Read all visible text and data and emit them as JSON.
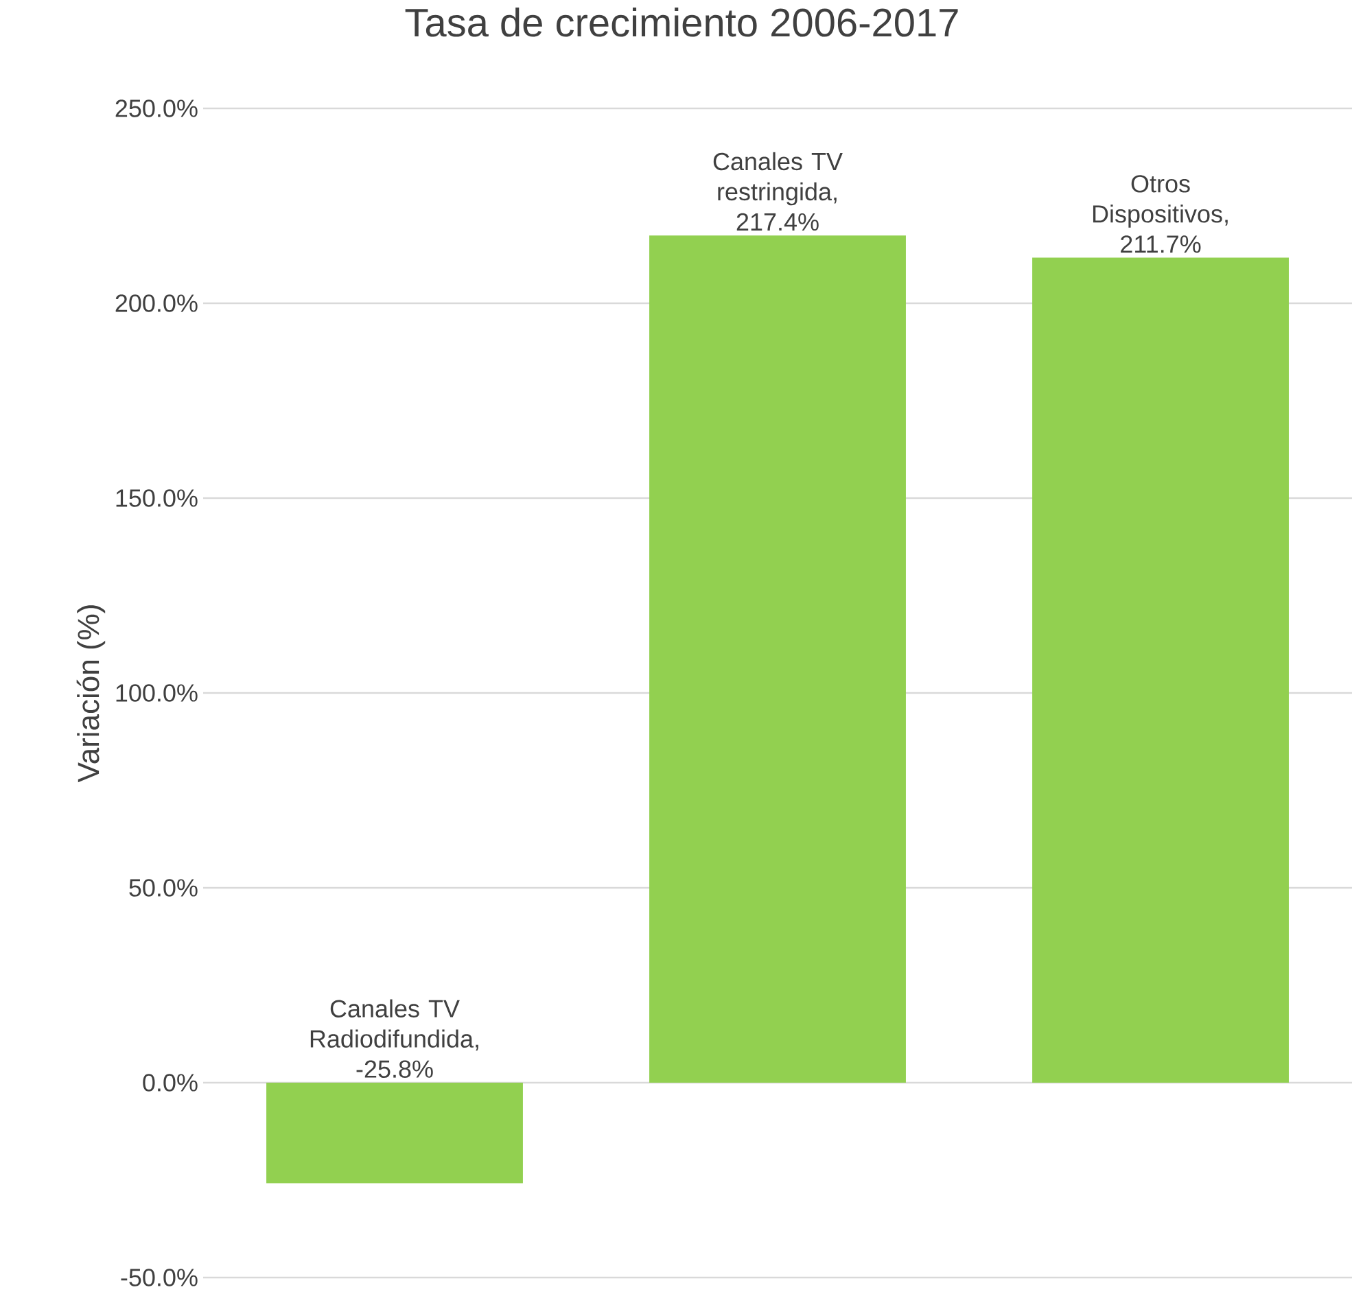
{
  "chart_data": {
    "type": "bar",
    "title": "Tasa de crecimiento 2006-2017",
    "ylabel": "Variación (%)",
    "categories": [
      null,
      null,
      null
    ],
    "values": [
      -25.8,
      217.4,
      211.7
    ],
    "value_labels": [
      "Canales TV Radiodifundida, -25.8%",
      "Canales TV restringida, 217.4%",
      "Otros Dispositivos, 211.7%"
    ],
    "color": "#92d050",
    "ylim": [
      -50,
      250
    ],
    "yticks": [
      {
        "value": -50,
        "label": "-50.0%"
      },
      {
        "value": 0,
        "label": "0.0%"
      },
      {
        "value": 50,
        "label": "50.0%"
      },
      {
        "value": 100,
        "label": "100.0%"
      },
      {
        "value": 150,
        "label": "150.0%"
      },
      {
        "value": 200,
        "label": "200.0%"
      },
      {
        "value": 250,
        "label": "250.0%"
      }
    ],
    "grid": "y"
  }
}
